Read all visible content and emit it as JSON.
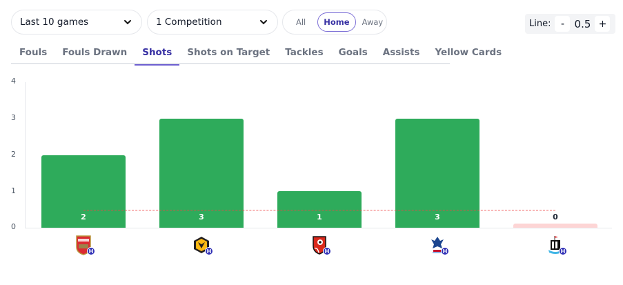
{
  "filters": {
    "games": {
      "value": "Last 10 games",
      "icon": "chevron-down-icon"
    },
    "competition": {
      "value": "1 Competition",
      "icon": "chevron-down-icon"
    },
    "venue": {
      "options": [
        "All",
        "Home",
        "Away"
      ],
      "selected": "Home"
    }
  },
  "line": {
    "label": "Line:",
    "decrement": "-",
    "value": "0.5",
    "increment": "+"
  },
  "tabs": [
    {
      "label": "Fouls",
      "active": false
    },
    {
      "label": "Fouls Drawn",
      "active": false
    },
    {
      "label": "Shots",
      "active": true
    },
    {
      "label": "Shots on Target",
      "active": false
    },
    {
      "label": "Tackles",
      "active": false
    },
    {
      "label": "Goals",
      "active": false
    },
    {
      "label": "Assists",
      "active": false
    },
    {
      "label": "Yellow Cards",
      "active": false
    }
  ],
  "colors": {
    "over": "#2eab5b",
    "under": "#fdd5d5",
    "line": "#ef4444",
    "accent": "#3730a3",
    "home_badge": "#2f2fb5"
  },
  "chart_data": {
    "type": "bar",
    "title": "Shots",
    "xlabel": "",
    "ylabel": "",
    "ylim": [
      0,
      4
    ],
    "yticks": [
      0,
      1,
      2,
      3,
      4
    ],
    "grid": false,
    "categories": [
      "Arsenal (H)",
      "Wolves (H)",
      "Bournemouth (H)",
      "Crystal Palace (H)",
      "Newcastle (H)"
    ],
    "values": [
      2,
      3,
      1,
      3,
      0
    ],
    "data_labels": [
      "2",
      "3",
      "1",
      "3",
      "0"
    ],
    "reference_line": {
      "value": 0.5,
      "style": "dashed",
      "color": "#ef4444"
    },
    "bar_colors": [
      "#2eab5b",
      "#2eab5b",
      "#2eab5b",
      "#2eab5b",
      "#fdd5d5"
    ],
    "opponents": [
      {
        "team": "Arsenal",
        "icon": "arsenal-crest-icon",
        "venue_badge": "H"
      },
      {
        "team": "Wolves",
        "icon": "wolves-crest-icon",
        "venue_badge": "H"
      },
      {
        "team": "Bournemouth",
        "icon": "bournemouth-crest-icon",
        "venue_badge": "H"
      },
      {
        "team": "Crystal Palace",
        "icon": "crystal-palace-crest-icon",
        "venue_badge": "H"
      },
      {
        "team": "Newcastle",
        "icon": "newcastle-crest-icon",
        "venue_badge": "H"
      }
    ]
  }
}
